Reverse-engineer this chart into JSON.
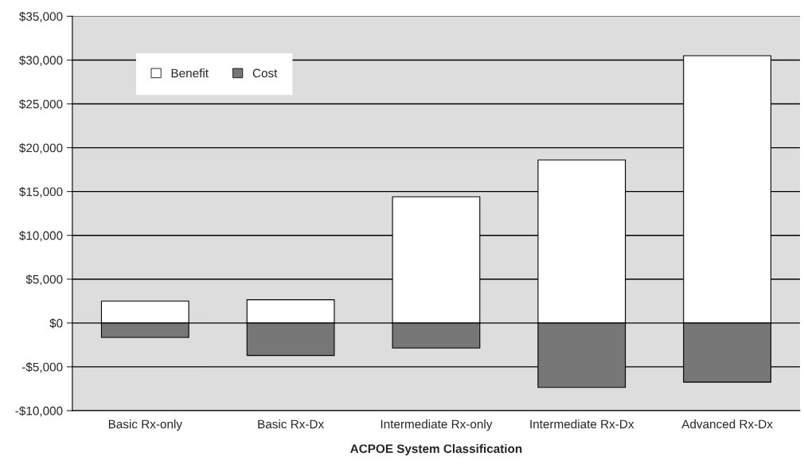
{
  "chart_data": {
    "type": "bar",
    "xlabel": "ACPOE System Classification",
    "categories": [
      "Basic Rx-only",
      "Basic Rx-Dx",
      "Intermediate Rx-only",
      "Intermediate Rx-Dx",
      "Advanced Rx-Dx"
    ],
    "series": [
      {
        "name": "Benefit",
        "color": "#ffffff",
        "values": [
          2500,
          2650,
          14400,
          18600,
          30500
        ]
      },
      {
        "name": "Cost",
        "color": "#777777",
        "values": [
          -1650,
          -3700,
          -2850,
          -7350,
          -6750
        ]
      }
    ],
    "stacked": true,
    "ylim": [
      -10000,
      35000
    ],
    "yticks": [
      {
        "value": -10000,
        "label": "-$10,000"
      },
      {
        "value": -5000,
        "label": "-$5,000"
      },
      {
        "value": 0,
        "label": "$0"
      },
      {
        "value": 5000,
        "label": "$5,000"
      },
      {
        "value": 10000,
        "label": "$10,000"
      },
      {
        "value": 15000,
        "label": "$15,000"
      },
      {
        "value": 20000,
        "label": "$20,000"
      },
      {
        "value": 25000,
        "label": "$25,000"
      },
      {
        "value": 30000,
        "label": "$30,000"
      },
      {
        "value": 35000,
        "label": "$35,000"
      }
    ],
    "grid": "y",
    "legend": "top left"
  }
}
